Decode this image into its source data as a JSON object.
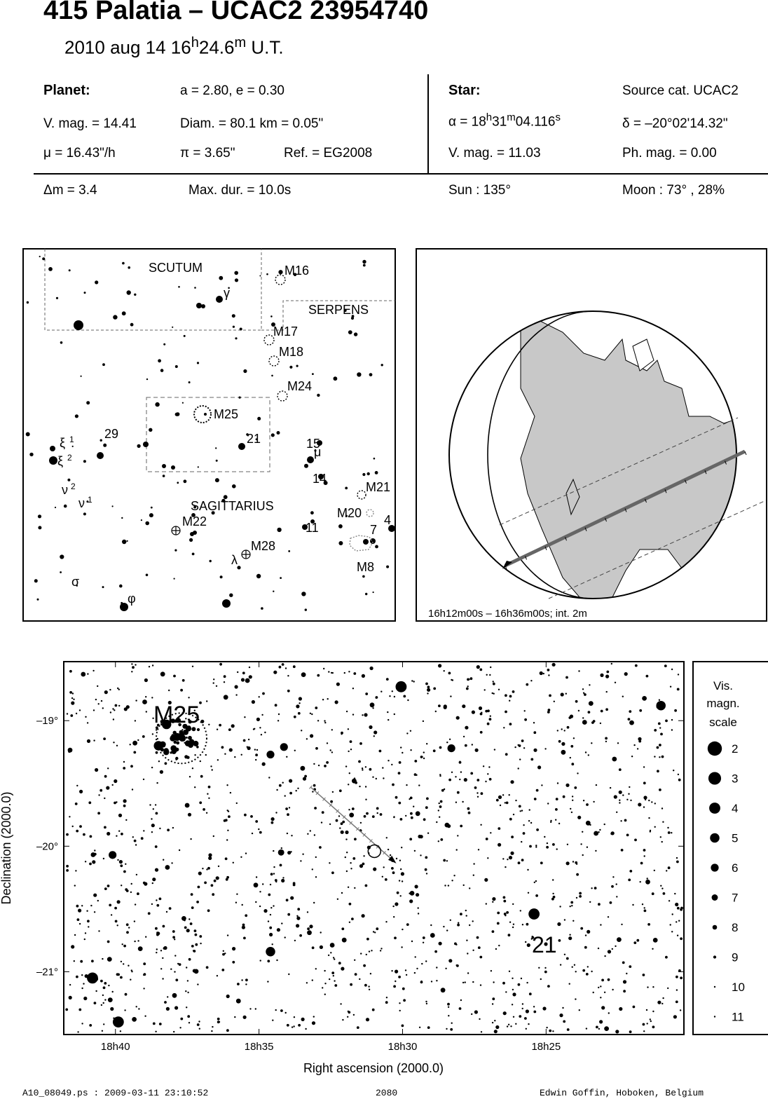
{
  "header": {
    "title": "415 Palatia  –  UCAC2 23954740",
    "subtitle_prefix": "2010 aug 14  16",
    "subtitle_h": "h",
    "subtitle_mid": "24.6",
    "subtitle_m": "m",
    "subtitle_suffix": " U.T."
  },
  "planet": {
    "label": "Planet:",
    "orbit": "a = 2.80, e = 0.30",
    "vmag": "V. mag. = 14.41",
    "diam": "Diam. = 80.1 km = 0.05\"",
    "mu": "μ =  16.43\"/h",
    "pi": "π =  3.65\"",
    "ref": "Ref. = EG2008"
  },
  "star": {
    "label": "Star:",
    "source": "Source cat.  UCAC2",
    "alpha_prefix": "α = 18",
    "alpha_h": "h",
    "alpha_mid": "31",
    "alpha_m": "m",
    "alpha_sec": "04.116",
    "alpha_s": "s",
    "delta": "δ = –20°02'14.32\"",
    "vmag": "V. mag. = 11.03",
    "phmag": "Ph. mag. =  0.00"
  },
  "event": {
    "dm": "Δm = 3.4",
    "maxdur": "Max. dur. = 10.0s",
    "sun": "Sun : 135°",
    "moon": "Moon :  73° , 28%"
  },
  "finder": {
    "constellations": [
      "SCUTUM",
      "SERPENS",
      "SAGITTARIUS"
    ],
    "objects": [
      "M16",
      "M17",
      "M18",
      "M24",
      "M25",
      "M21",
      "M20",
      "M8",
      "M22",
      "M28"
    ],
    "numbers": [
      "29",
      "21",
      "15",
      "14",
      "11",
      "7",
      "4"
    ],
    "greek": [
      "γ",
      "ξ",
      "1",
      "ξ",
      "2",
      "ν",
      "2",
      "ν",
      "1",
      "μ",
      "λ",
      "σ",
      "φ"
    ]
  },
  "globe": {
    "caption": "16h12m00s – 16h36m00s; int.  2m",
    "colors": {
      "land": "#c8c8c8",
      "ocean": "#ffffff"
    }
  },
  "chart_data": {
    "type": "scatter",
    "title": "",
    "xlabel": "Right ascension (2000.0)",
    "ylabel": "Declination (2000.0)",
    "xticks": [
      "18h40",
      "18h35",
      "18h30",
      "18h25"
    ],
    "xtick_minutes": [
      40,
      35,
      30,
      25
    ],
    "xlim_minutes": [
      41.8,
      20.2
    ],
    "yticks": [
      "–19°",
      "–20°",
      "–21°"
    ],
    "ytick_values": [
      -19,
      -20,
      -21
    ],
    "ylim": [
      -21.5,
      -18.53
    ],
    "labels": [
      {
        "text": "M25",
        "ra_min": 37.7,
        "dec": -18.95
      },
      {
        "text": "21",
        "ra_min": 25.35,
        "dec": -20.78
      }
    ],
    "bright_stars": [
      {
        "ra_min": 30.05,
        "dec": -18.73,
        "mag": 4
      },
      {
        "ra_min": 21.0,
        "dec": -18.88,
        "mag": 5
      },
      {
        "ra_min": 25.42,
        "dec": -20.54,
        "mag": 4
      },
      {
        "ra_min": 40.8,
        "dec": -21.05,
        "mag": 4
      },
      {
        "ra_min": 39.9,
        "dec": -21.4,
        "mag": 4
      },
      {
        "ra_min": 34.6,
        "dec": -20.84,
        "mag": 5
      },
      {
        "ra_min": 38.5,
        "dec": -19.2,
        "mag": 5
      },
      {
        "ra_min": 34.6,
        "dec": -19.27,
        "mag": 6
      },
      {
        "ra_min": 40.1,
        "dec": -20.07,
        "mag": 6
      },
      {
        "ra_min": 37.85,
        "dec": -19.13,
        "mag": 6
      },
      {
        "ra_min": 38.22,
        "dec": -19.03,
        "mag": 5
      },
      {
        "ra_min": 34.13,
        "dec": -19.21,
        "mag": 6
      },
      {
        "ra_min": 34.23,
        "dec": -20.05,
        "mag": 7
      },
      {
        "ra_min": 28.3,
        "dec": -19.22,
        "mag": 6
      }
    ],
    "path": {
      "start_ra_min": 33.2,
      "start_dec": -19.53,
      "end_ra_min": 30.4,
      "end_dec": -20.1,
      "star_ra_min": 30.98,
      "star_dec": -20.04
    },
    "magnitude_scale": {
      "title": [
        "Vis.",
        "magn.",
        "scale"
      ],
      "mags": [
        2,
        3,
        4,
        5,
        6,
        7,
        8,
        9,
        10,
        11
      ]
    }
  },
  "footer": {
    "left": "A10_08049.ps : 2009-03-11 23:10:52",
    "center": "2080",
    "right": "Edwin Goffin, Hoboken, Belgium"
  }
}
